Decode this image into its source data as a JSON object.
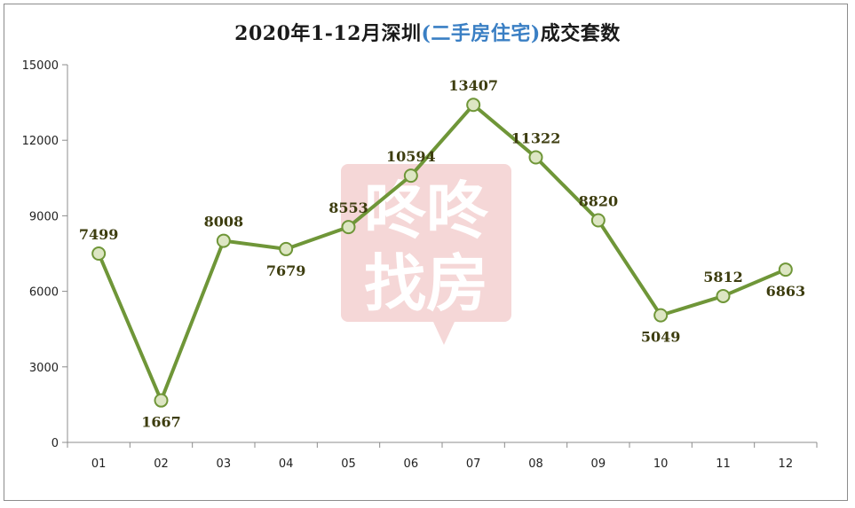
{
  "chart_data": {
    "type": "line",
    "title_parts": {
      "prefix": "2020年1-12月深圳",
      "highlight": "(二手房住宅)",
      "suffix": "成交套数"
    },
    "categories": [
      "01",
      "02",
      "03",
      "04",
      "05",
      "06",
      "07",
      "08",
      "09",
      "10",
      "11",
      "12"
    ],
    "series": [
      {
        "values": [
          7499,
          1667,
          8008,
          7679,
          8553,
          10594,
          13407,
          11322,
          8820,
          5049,
          5812,
          6863
        ]
      }
    ],
    "ylim": [
      0,
      15000
    ],
    "yticks": [
      0,
      3000,
      6000,
      9000,
      12000,
      15000
    ],
    "xlabel": "",
    "ylabel": "",
    "grid": false,
    "data_labels": true,
    "colors": {
      "line": "#6f9638",
      "marker_fill": "#dde6c3",
      "marker_stroke": "#6f9638",
      "label": "#3d3d0f",
      "title_highlight": "#3a7fc4"
    }
  },
  "watermark": {
    "text_line1": "咚咚",
    "text_line2": "找房",
    "color": "#f2c9c9"
  }
}
